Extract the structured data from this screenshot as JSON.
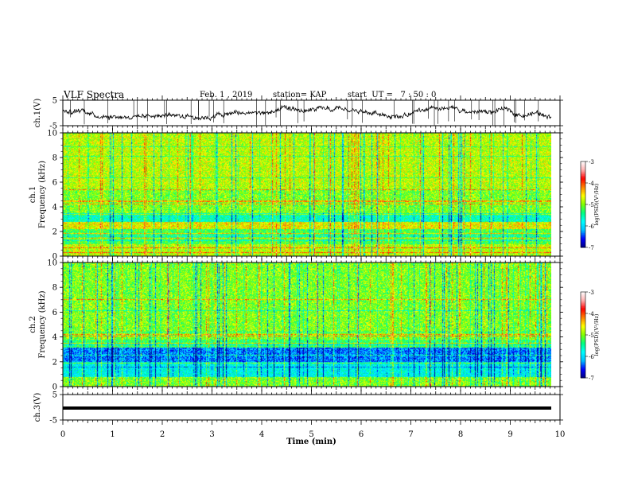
{
  "header": {
    "title": "VLF Spectra",
    "date": "Feb. 1 , 2019",
    "station": "station= KAP",
    "start": "start  UT =   7 : 50 : 0"
  },
  "chart_data": [
    {
      "type": "line",
      "panel": "ch1-waveform",
      "ylabel": "ch.1(V)",
      "ylim": [
        -5,
        5
      ],
      "yticks": [
        "5",
        "-5"
      ],
      "xlim": [
        0,
        10
      ],
      "series": [
        {
          "values_approx_range": [
            -2.5,
            2.5
          ],
          "color": "#000000"
        }
      ]
    },
    {
      "type": "heatmap",
      "panel": "ch1-spectrogram",
      "ylabel": "ch.1\nFrequency (kHz)",
      "ylim": [
        0,
        10
      ],
      "yticks": [
        "0",
        "2",
        "4",
        "6",
        "8",
        "10"
      ],
      "xlim": [
        0,
        9.8
      ],
      "colorbar": {
        "label": "log(PSD)(V²/Hz)",
        "range": [
          -7,
          -3
        ],
        "ticks": [
          "-3",
          "-4",
          "-5",
          "-6",
          "-7"
        ]
      },
      "bands": [
        {
          "f_range": [
            0,
            1
          ],
          "level": -4.8
        },
        {
          "f_range": [
            1,
            2.2
          ],
          "level": -5.2
        },
        {
          "f_range": [
            2.2,
            2.8
          ],
          "level": -4.6
        },
        {
          "f_range": [
            2.8,
            3.5
          ],
          "level": -5.6
        },
        {
          "f_range": [
            3.5,
            5.5
          ],
          "level": -5.0
        },
        {
          "f_range": [
            5.5,
            10
          ],
          "level": -4.8
        }
      ]
    },
    {
      "type": "heatmap",
      "panel": "ch2-spectrogram",
      "ylabel": "ch.2\nFrequency (kHz)",
      "ylim": [
        0,
        10
      ],
      "yticks": [
        "0",
        "2",
        "4",
        "6",
        "8",
        "10"
      ],
      "xlim": [
        0,
        9.8
      ],
      "colorbar": {
        "label": "log(PSD)(V²/Hz)",
        "range": [
          -7,
          -3
        ],
        "ticks": [
          "-3",
          "-4",
          "-5",
          "-6",
          "-7"
        ]
      },
      "bands": [
        {
          "f_range": [
            0,
            0.8
          ],
          "level": -5.0
        },
        {
          "f_range": [
            0.8,
            2.0
          ],
          "level": -5.8
        },
        {
          "f_range": [
            2.0,
            3.2
          ],
          "level": -6.3
        },
        {
          "f_range": [
            3.2,
            3.8
          ],
          "level": -5.3
        },
        {
          "f_range": [
            3.8,
            10
          ],
          "level": -5.0
        }
      ]
    },
    {
      "type": "line",
      "panel": "ch3-waveform",
      "ylabel": "ch.3(V)",
      "ylim": [
        -5,
        5
      ],
      "yticks": [
        "5",
        "-5"
      ],
      "xlim": [
        0,
        10
      ],
      "series": [
        {
          "values_approx_constant": -0.3,
          "color": "#000000"
        }
      ]
    }
  ],
  "x_axis": {
    "xlabel": "Time (min)",
    "ticks": [
      "0",
      "1",
      "2",
      "3",
      "4",
      "5",
      "6",
      "7",
      "8",
      "9",
      "10"
    ]
  },
  "colors": {
    "colormap": [
      "#000080",
      "#0000ff",
      "#00c0ff",
      "#00ffff",
      "#00ff80",
      "#80ff00",
      "#ffff00",
      "#ff8000",
      "#ff0000",
      "#ffb0b0",
      "#ffffff"
    ]
  }
}
